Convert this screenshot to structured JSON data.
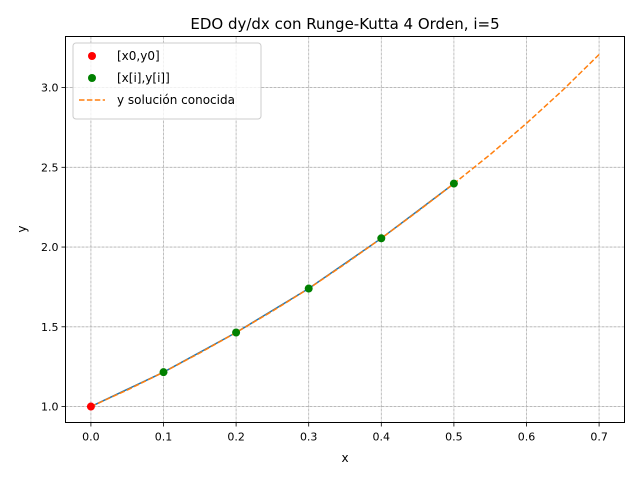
{
  "chart_data": {
    "type": "line",
    "title": "EDO dy/dx con Runge-Kutta 4 Orden, i=5",
    "xlabel": "x",
    "ylabel": "y",
    "xlim": [
      -0.035,
      0.735
    ],
    "ylim": [
      0.9,
      3.32
    ],
    "xticks": [
      0.0,
      0.1,
      0.2,
      0.3,
      0.4,
      0.5,
      0.6,
      0.7
    ],
    "xtick_labels": [
      "0.0",
      "0.1",
      "0.2",
      "0.3",
      "0.4",
      "0.5",
      "0.6",
      "0.7"
    ],
    "yticks": [
      1.0,
      1.5,
      2.0,
      2.5,
      3.0
    ],
    "ytick_labels": [
      "1.0",
      "1.5",
      "2.0",
      "2.5",
      "3.0"
    ],
    "grid": true,
    "legend_position": "top-left",
    "series": [
      {
        "name": "[x0,y0]",
        "kind": "point",
        "color": "#ff0000",
        "x": [
          0.0
        ],
        "y": [
          1.0
        ]
      },
      {
        "name": "[x[i],y[i]]",
        "kind": "point",
        "color": "#008000",
        "x": [
          0.1,
          0.2,
          0.3,
          0.4,
          0.5
        ],
        "y": [
          1.2155,
          1.4642,
          1.7399,
          2.0548,
          2.3978
        ]
      },
      {
        "kind": "line",
        "color": "#1f77b4",
        "x": [
          0.0,
          0.1,
          0.2,
          0.3,
          0.4,
          0.5
        ],
        "y": [
          1.0,
          1.2155,
          1.4642,
          1.7399,
          2.0548,
          2.3978
        ]
      },
      {
        "name": "y solución conocida",
        "kind": "dashed",
        "color": "#ff7f0e",
        "x": [
          0.0,
          0.05,
          0.1,
          0.15,
          0.2,
          0.25,
          0.3,
          0.35,
          0.4,
          0.45,
          0.5,
          0.55,
          0.6,
          0.65,
          0.7
        ],
        "y": [
          1.0,
          1.1036,
          1.2155,
          1.3359,
          1.4642,
          1.598,
          1.7399,
          1.8934,
          2.0548,
          2.2229,
          2.3978,
          2.5802,
          2.7755,
          2.9838,
          3.207
        ]
      }
    ]
  }
}
